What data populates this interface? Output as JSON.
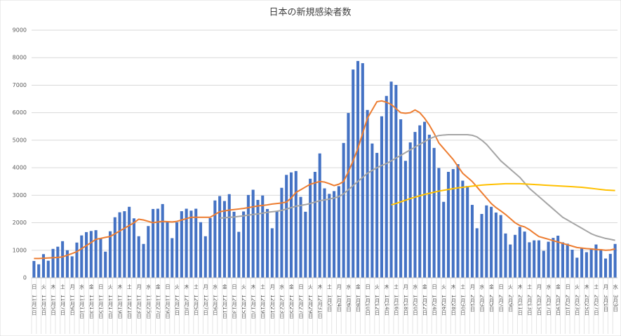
{
  "chart_data": {
    "type": "bar",
    "title": "日本の新規感染者数",
    "weekdays": [
      "日",
      null,
      "火",
      null,
      "木",
      null,
      "土",
      null,
      "月",
      null,
      "水",
      null,
      "金",
      null,
      "日",
      null,
      "火",
      null,
      "木",
      null,
      "土",
      null,
      "月",
      null,
      "水",
      null,
      "金",
      null,
      "日",
      null,
      "火",
      null,
      "木",
      null,
      "土",
      null,
      "月",
      null,
      "水",
      null,
      "金",
      null,
      "日",
      null,
      "火",
      null,
      "木",
      null,
      "土",
      null,
      "月",
      null,
      "水",
      null,
      "金",
      null,
      "日",
      null,
      "火",
      null,
      "木",
      null,
      "土",
      null,
      "月",
      null,
      "水",
      null,
      "金",
      null,
      "日",
      null,
      "火",
      null,
      "木",
      null,
      "土",
      null,
      "月",
      null,
      "水",
      null,
      "金",
      null,
      "日",
      null,
      "火",
      null,
      "木",
      null,
      "土",
      null,
      "月",
      null,
      "水",
      null,
      "金",
      null,
      "日",
      null,
      "火",
      null,
      "木",
      null,
      "土",
      null,
      "月",
      null,
      "水",
      null,
      "金",
      null,
      "日",
      null,
      "火",
      null,
      "木",
      null,
      "土",
      null,
      "月",
      null,
      "水"
    ],
    "categories": [
      "11月1日",
      null,
      "11月3日",
      null,
      "11月5日",
      null,
      "11月7日",
      null,
      "11月9日",
      null,
      "11月11日",
      null,
      "11月13日",
      null,
      "11月15日",
      null,
      "11月17日",
      null,
      "11月19日",
      null,
      "11月21日",
      null,
      "11月23日",
      null,
      "11月25日",
      null,
      "11月27日",
      null,
      "11月29日",
      null,
      "12月1日",
      null,
      "12月3日",
      null,
      "12月5日",
      null,
      "12月7日",
      null,
      "12月9日",
      null,
      "12月11日",
      null,
      "12月13日",
      null,
      "12月15日",
      null,
      "12月17日",
      null,
      "12月19日",
      null,
      "12月21日",
      null,
      "12月23日",
      null,
      "12月25日",
      null,
      "12月27日",
      null,
      "12月29日",
      null,
      "12月31日",
      null,
      "1月2日",
      null,
      "1月4日",
      null,
      "1月6日",
      null,
      "1月8日",
      null,
      "1月10日",
      null,
      "1月12日",
      null,
      "1月14日",
      null,
      "1月16日",
      null,
      "1月18日",
      null,
      "1月20日",
      null,
      "1月22日",
      null,
      "1月24日",
      null,
      "1月26日",
      null,
      "1月28日",
      null,
      "1月30日",
      null,
      "2月1日",
      null,
      "2月3日",
      null,
      "2月5日",
      null,
      "2月7日",
      null,
      "2月9日",
      null,
      "2月11日",
      null,
      "2月13日",
      null,
      "2月15日",
      null,
      "2月17日",
      null,
      "2月19日",
      null,
      "2月21日",
      null,
      "2月23日",
      null,
      "2月25日",
      null,
      "2月27日",
      null,
      "3月1日",
      null,
      "3月3日"
    ],
    "series": [
      {
        "type": "bar",
        "color": "#4472c4",
        "values": [
          610,
          490,
          860,
          620,
          1050,
          1130,
          1330,
          1000,
          780,
          1280,
          1540,
          1660,
          1700,
          1730,
          1440,
          950,
          1690,
          2200,
          2380,
          2420,
          2580,
          2160,
          1510,
          1230,
          1880,
          2500,
          2510,
          2680,
          2050,
          1440,
          2020,
          2420,
          2510,
          2440,
          2510,
          2020,
          1510,
          2170,
          2810,
          2970,
          2790,
          3040,
          2400,
          1670,
          2410,
          3010,
          3200,
          2830,
          2990,
          2500,
          1800,
          2410,
          3270,
          3740,
          3830,
          3880,
          2940,
          2400,
          3600,
          3850,
          4520,
          3250,
          3050,
          3150,
          3330,
          4900,
          5990,
          7570,
          7880,
          7800,
          6100,
          4880,
          4540,
          5870,
          6610,
          7130,
          7010,
          5760,
          4250,
          4920,
          5300,
          5540,
          5670,
          5200,
          4720,
          3990,
          2760,
          3850,
          3950,
          4130,
          3530,
          3340,
          2650,
          1800,
          2320,
          2630,
          2580,
          2370,
          2280,
          1610,
          1210,
          1560,
          1850,
          1680,
          1290,
          1360,
          1360,
          980,
          1310,
          1450,
          1530,
          1290,
          1240,
          1020,
          730,
          1080,
          930,
          1070,
          1210,
          1040,
          700,
          870,
          1230
        ]
      },
      {
        "type": "line",
        "color": "#ed7d31",
        "values": [
          700,
          700,
          710,
          720,
          730,
          740,
          760,
          820,
          880,
          950,
          1060,
          1170,
          1280,
          1400,
          1430,
          1470,
          1500,
          1600,
          1700,
          1800,
          1900,
          2000,
          2130,
          2100,
          2050,
          2000,
          2030,
          2050,
          2040,
          2030,
          2050,
          2100,
          2150,
          2200,
          2200,
          2200,
          2200,
          2200,
          2300,
          2400,
          2430,
          2460,
          2480,
          2500,
          2520,
          2550,
          2580,
          2610,
          2630,
          2650,
          2680,
          2700,
          2720,
          2750,
          2900,
          3100,
          3200,
          3300,
          3400,
          3450,
          3500,
          3480,
          3420,
          3350,
          3400,
          3500,
          3850,
          4250,
          4700,
          5250,
          5800,
          6100,
          6400,
          6430,
          6380,
          6300,
          6150,
          6000,
          5980,
          6000,
          6100,
          6000,
          5800,
          5550,
          5250,
          4900,
          4700,
          4500,
          4300,
          4050,
          3800,
          3650,
          3500,
          3300,
          3100,
          2900,
          2700,
          2550,
          2430,
          2300,
          2150,
          2000,
          1900,
          1850,
          1750,
          1620,
          1500,
          1450,
          1400,
          1350,
          1300,
          1250,
          1200,
          1150,
          1100,
          1080,
          1060,
          1050,
          1030,
          1020,
          1000,
          1010,
          1050
        ]
      },
      {
        "type": "line",
        "color": "#a5a5a5",
        "values": [
          null,
          null,
          null,
          null,
          null,
          null,
          null,
          null,
          null,
          null,
          null,
          null,
          null,
          null,
          null,
          null,
          null,
          null,
          null,
          null,
          null,
          null,
          null,
          null,
          null,
          null,
          null,
          null,
          null,
          null,
          null,
          null,
          null,
          null,
          null,
          null,
          null,
          null,
          null,
          2170,
          2180,
          2200,
          2210,
          2230,
          2250,
          2280,
          2300,
          2320,
          2350,
          2380,
          2400,
          2420,
          2450,
          2500,
          2550,
          2600,
          2630,
          2660,
          2700,
          2750,
          2800,
          2830,
          2860,
          2900,
          2950,
          3050,
          3200,
          3350,
          3500,
          3650,
          3800,
          3900,
          4000,
          4080,
          4150,
          4250,
          4350,
          4450,
          4550,
          4650,
          4750,
          4850,
          4950,
          5050,
          5120,
          5170,
          5190,
          5200,
          5200,
          5200,
          5200,
          5200,
          5180,
          5120,
          5000,
          4850,
          4650,
          4450,
          4250,
          4100,
          3950,
          3800,
          3650,
          3450,
          3250,
          3100,
          2950,
          2800,
          2650,
          2500,
          2350,
          2200,
          2100,
          2000,
          1900,
          1800,
          1700,
          1600,
          1530,
          1480,
          1430,
          1400,
          1360
        ]
      },
      {
        "type": "line",
        "color": "#ffc000",
        "values": [
          null,
          null,
          null,
          null,
          null,
          null,
          null,
          null,
          null,
          null,
          null,
          null,
          null,
          null,
          null,
          null,
          null,
          null,
          null,
          null,
          null,
          null,
          null,
          null,
          null,
          null,
          null,
          null,
          null,
          null,
          null,
          null,
          null,
          null,
          null,
          null,
          null,
          null,
          null,
          null,
          null,
          null,
          null,
          null,
          null,
          null,
          null,
          null,
          null,
          null,
          null,
          null,
          null,
          null,
          null,
          null,
          null,
          null,
          null,
          null,
          null,
          null,
          null,
          null,
          null,
          null,
          null,
          null,
          null,
          null,
          null,
          null,
          null,
          null,
          null,
          2650,
          2700,
          2760,
          2820,
          2880,
          2930,
          2980,
          3030,
          3070,
          3110,
          3150,
          3180,
          3210,
          3240,
          3270,
          3290,
          3310,
          3330,
          3350,
          3370,
          3380,
          3390,
          3400,
          3410,
          3420,
          3420,
          3420,
          3420,
          3410,
          3400,
          3390,
          3380,
          3370,
          3360,
          3350,
          3340,
          3330,
          3320,
          3310,
          3300,
          3290,
          3270,
          3250,
          3230,
          3210,
          3190,
          3180,
          3170
        ]
      }
    ],
    "ylim": [
      0,
      9000
    ],
    "yticks": [
      0,
      1000,
      2000,
      3000,
      4000,
      5000,
      6000,
      7000,
      8000,
      9000
    ],
    "grid": true
  }
}
